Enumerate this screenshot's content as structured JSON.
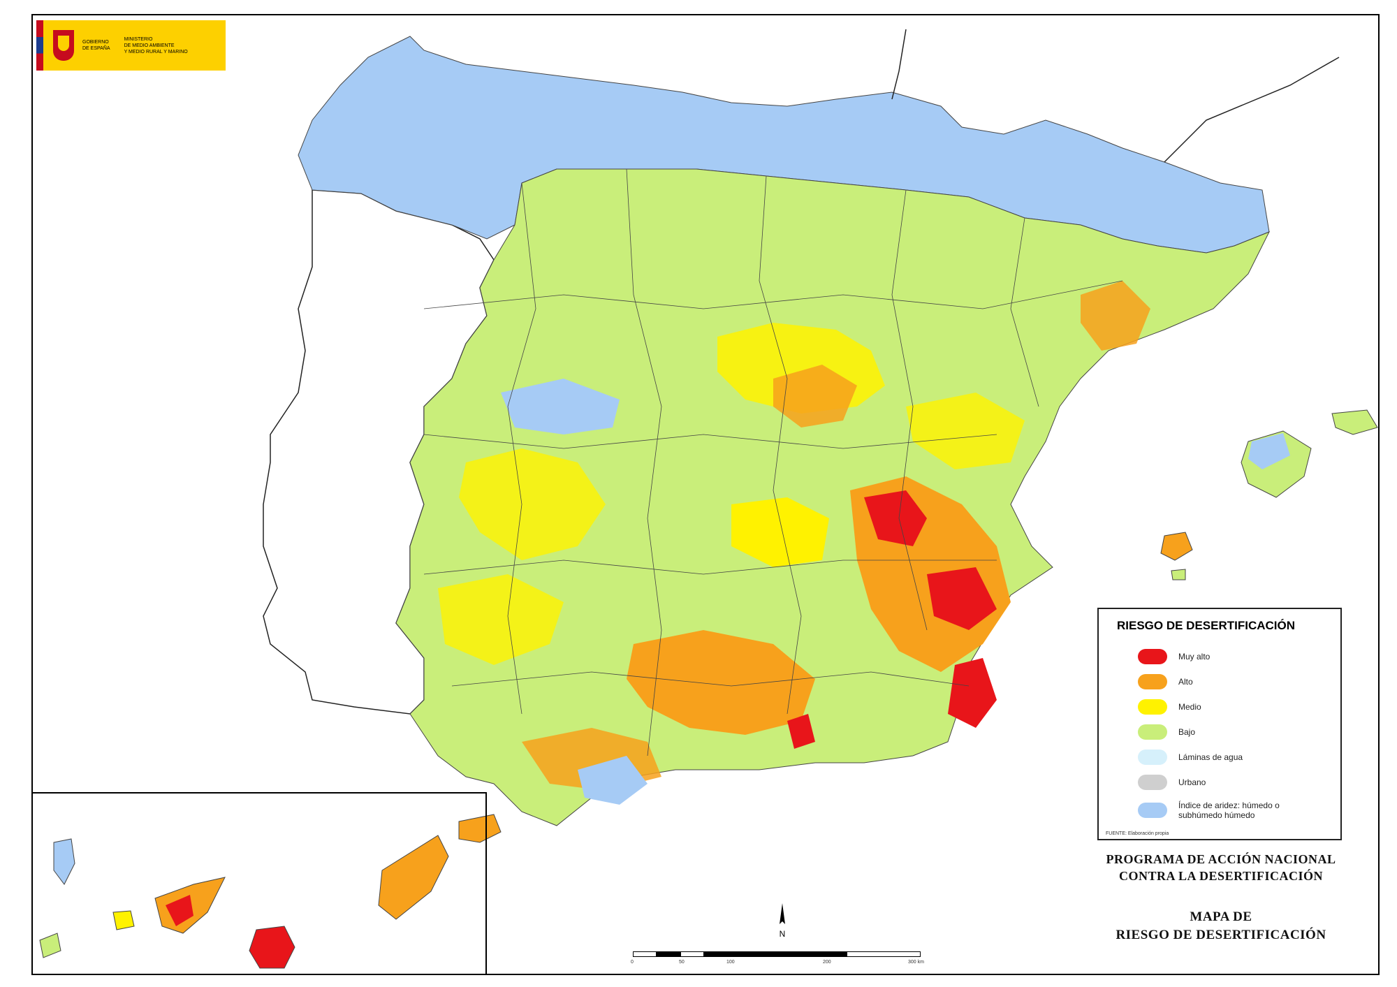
{
  "logo": {
    "line1": "GOBIERNO",
    "line2": "DE ESPAÑA",
    "ministry1": "MINISTERIO",
    "ministry2": "DE MEDIO AMBIENTE",
    "ministry3": "Y MEDIO RURAL Y MARINO"
  },
  "legend": {
    "title": "RIESGO DE DESERTIFICACIÓN",
    "items": [
      {
        "label": "Muy alto",
        "color": "#e8151a"
      },
      {
        "label": "Alto",
        "color": "#f7a11c"
      },
      {
        "label": "Medio",
        "color": "#fff200"
      },
      {
        "label": "Bajo",
        "color": "#c9ee7a"
      },
      {
        "label": "Láminas de agua",
        "color": "#d6f0fb"
      },
      {
        "label": "Urbano",
        "color": "#cfcfcf"
      },
      {
        "label": "Índice de aridez: húmedo o subhúmedo húmedo",
        "color": "#a6cbf5"
      }
    ],
    "source": "FUENTE: Elaboración propia"
  },
  "program_title": {
    "line1": "PROGRAMA DE ACCIÓN NACIONAL",
    "line2": "CONTRA LA DESERTIFICACIÓN"
  },
  "map_title": {
    "line1": "MAPA DE",
    "line2": "RIESGO DE DESERTIFICACIÓN"
  },
  "scale": {
    "labels": [
      "0",
      "50",
      "100",
      "",
      "200",
      "",
      "300 km"
    ]
  },
  "north_label": "N"
}
